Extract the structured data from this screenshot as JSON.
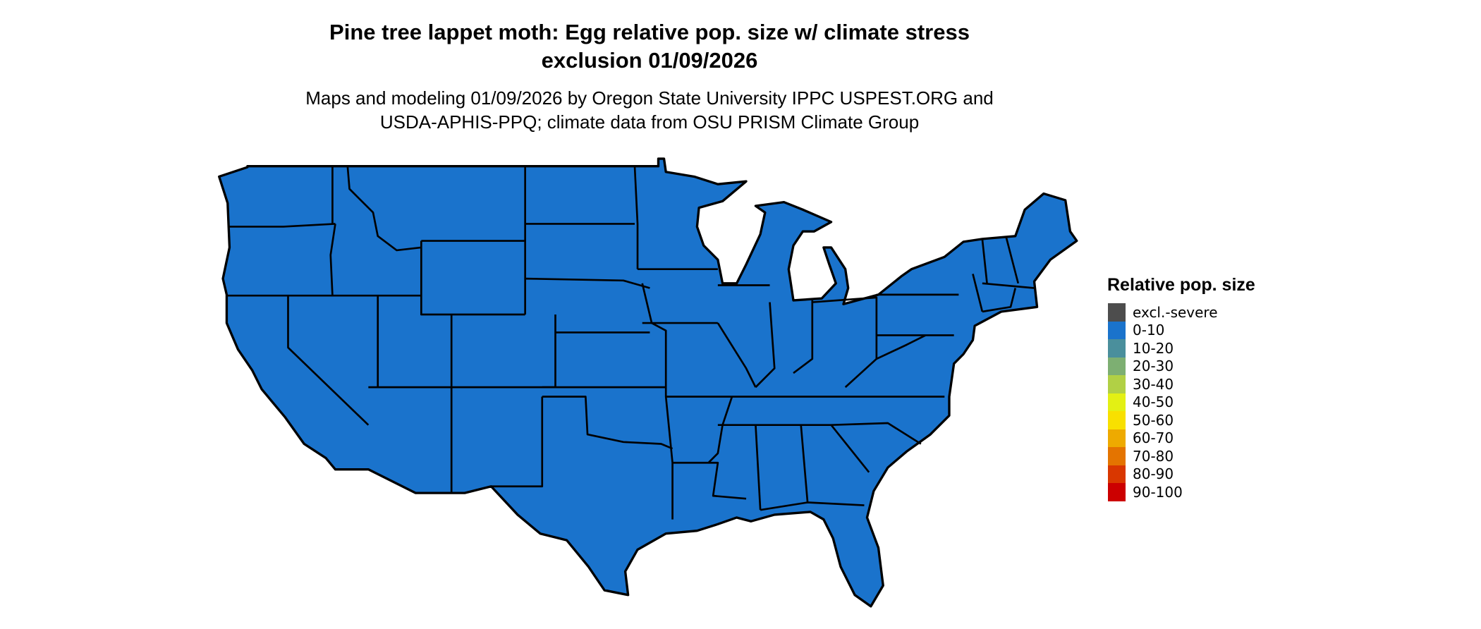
{
  "title_line1": "Pine tree lappet moth: Egg relative pop. size w/ climate stress",
  "title_line2": "exclusion 01/09/2026",
  "subtitle_line1": "Maps and modeling 01/09/2026 by Oregon State University IPPC USPEST.ORG and",
  "subtitle_line2": "USDA-APHIS-PPQ; climate data from OSU PRISM Climate Group",
  "map": {
    "fill_color": "#1a73cc",
    "fill_category": "0-10",
    "border_color": "#000000"
  },
  "legend": {
    "title": "Relative pop. size",
    "items": [
      {
        "label": "excl.-severe",
        "color": "#4d4d4d"
      },
      {
        "label": "0-10",
        "color": "#1a73cc"
      },
      {
        "label": "10-20",
        "color": "#4a8f9c"
      },
      {
        "label": "20-30",
        "color": "#7daf72"
      },
      {
        "label": "30-40",
        "color": "#b1d045"
      },
      {
        "label": "40-50",
        "color": "#e3f014"
      },
      {
        "label": "50-60",
        "color": "#f8e000"
      },
      {
        "label": "60-70",
        "color": "#eeaa00"
      },
      {
        "label": "70-80",
        "color": "#e47400"
      },
      {
        "label": "80-90",
        "color": "#d93700"
      },
      {
        "label": "90-100",
        "color": "#cc0000"
      }
    ]
  }
}
